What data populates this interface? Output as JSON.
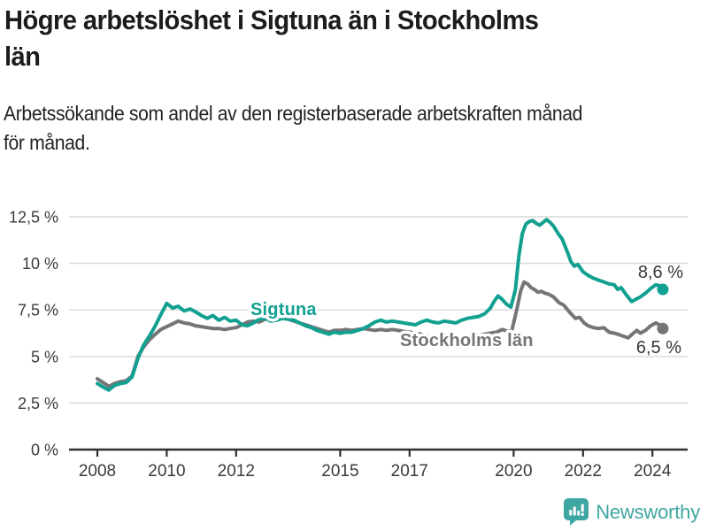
{
  "header": {
    "title_lines": [
      "Högre arbetslöshet i Sigtuna än i Stockholms",
      "län"
    ],
    "subtitle_lines": [
      "Arbetssökande som andel av den registerbaserade arbetskraften månad",
      "för månad."
    ]
  },
  "chart_data": {
    "type": "line",
    "title": "Högre arbetslöshet i Sigtuna än i Stockholms län",
    "subtitle": "Arbetssökande som andel av den registerbaserade arbetskraften månad för månad.",
    "xlabel": "",
    "ylabel": "",
    "unit": "%",
    "grid": "horizontal",
    "legend_position": "inline-labels",
    "xlim": [
      2007.3,
      2025.0
    ],
    "ylim": [
      0,
      13.5
    ],
    "x_ticks": [
      {
        "value": 2008,
        "label": "2008"
      },
      {
        "value": 2010,
        "label": "2010"
      },
      {
        "value": 2012,
        "label": "2012"
      },
      {
        "value": 2015,
        "label": "2015"
      },
      {
        "value": 2017,
        "label": "2017"
      },
      {
        "value": 2020,
        "label": "2020"
      },
      {
        "value": 2022,
        "label": "2022"
      },
      {
        "value": 2024,
        "label": "2024"
      }
    ],
    "y_ticks": [
      {
        "value": 0,
        "label": "0 %"
      },
      {
        "value": 2.5,
        "label": "2,5 %"
      },
      {
        "value": 5,
        "label": "5 %"
      },
      {
        "value": 7.5,
        "label": "7,5 %"
      },
      {
        "value": 10,
        "label": "10 %"
      },
      {
        "value": 12.5,
        "label": "12,5 %"
      }
    ],
    "colors": {
      "sigtuna": "#12a091",
      "stockholm": "#757578",
      "grid": "#d9d9d9",
      "axis": "#2f2f2f",
      "tick_text": "#3a3a3a",
      "end_label_text": "#383838"
    },
    "series": [
      {
        "name": "Sigtuna",
        "color": "#12a091",
        "end_label": "8,6 %",
        "end_value": 8.6,
        "points": [
          [
            2008.0,
            3.55
          ],
          [
            2008.17,
            3.35
          ],
          [
            2008.33,
            3.2
          ],
          [
            2008.5,
            3.45
          ],
          [
            2008.67,
            3.55
          ],
          [
            2008.83,
            3.6
          ],
          [
            2009.0,
            3.9
          ],
          [
            2009.17,
            4.9
          ],
          [
            2009.33,
            5.6
          ],
          [
            2009.5,
            6.1
          ],
          [
            2009.67,
            6.65
          ],
          [
            2009.83,
            7.25
          ],
          [
            2010.0,
            7.85
          ],
          [
            2010.17,
            7.6
          ],
          [
            2010.33,
            7.7
          ],
          [
            2010.5,
            7.45
          ],
          [
            2010.67,
            7.55
          ],
          [
            2010.83,
            7.4
          ],
          [
            2011.0,
            7.2
          ],
          [
            2011.17,
            7.05
          ],
          [
            2011.33,
            7.2
          ],
          [
            2011.5,
            6.95
          ],
          [
            2011.67,
            7.1
          ],
          [
            2011.83,
            6.9
          ],
          [
            2012.0,
            6.95
          ],
          [
            2012.17,
            6.7
          ],
          [
            2012.33,
            6.65
          ],
          [
            2012.5,
            6.8
          ],
          [
            2012.67,
            7.0
          ],
          [
            2012.83,
            7.05
          ],
          [
            2013.0,
            6.9
          ],
          [
            2013.17,
            6.95
          ],
          [
            2013.33,
            7.05
          ],
          [
            2013.5,
            7.0
          ],
          [
            2013.67,
            6.95
          ],
          [
            2013.83,
            6.8
          ],
          [
            2014.0,
            6.65
          ],
          [
            2014.17,
            6.55
          ],
          [
            2014.33,
            6.4
          ],
          [
            2014.5,
            6.3
          ],
          [
            2014.67,
            6.2
          ],
          [
            2014.83,
            6.3
          ],
          [
            2015.0,
            6.25
          ],
          [
            2015.17,
            6.3
          ],
          [
            2015.33,
            6.3
          ],
          [
            2015.5,
            6.4
          ],
          [
            2015.67,
            6.5
          ],
          [
            2015.83,
            6.65
          ],
          [
            2016.0,
            6.85
          ],
          [
            2016.17,
            6.95
          ],
          [
            2016.33,
            6.85
          ],
          [
            2016.5,
            6.9
          ],
          [
            2016.67,
            6.85
          ],
          [
            2016.83,
            6.8
          ],
          [
            2017.0,
            6.75
          ],
          [
            2017.17,
            6.7
          ],
          [
            2017.33,
            6.85
          ],
          [
            2017.5,
            6.95
          ],
          [
            2017.67,
            6.85
          ],
          [
            2017.83,
            6.8
          ],
          [
            2018.0,
            6.9
          ],
          [
            2018.17,
            6.85
          ],
          [
            2018.33,
            6.8
          ],
          [
            2018.5,
            6.95
          ],
          [
            2018.67,
            7.05
          ],
          [
            2018.83,
            7.1
          ],
          [
            2019.0,
            7.15
          ],
          [
            2019.17,
            7.3
          ],
          [
            2019.33,
            7.6
          ],
          [
            2019.45,
            8.0
          ],
          [
            2019.55,
            8.25
          ],
          [
            2019.65,
            8.1
          ],
          [
            2019.8,
            7.8
          ],
          [
            2019.92,
            7.65
          ],
          [
            2020.05,
            8.6
          ],
          [
            2020.15,
            10.4
          ],
          [
            2020.25,
            11.6
          ],
          [
            2020.35,
            12.1
          ],
          [
            2020.45,
            12.25
          ],
          [
            2020.55,
            12.3
          ],
          [
            2020.65,
            12.15
          ],
          [
            2020.75,
            12.05
          ],
          [
            2020.85,
            12.2
          ],
          [
            2020.95,
            12.35
          ],
          [
            2021.05,
            12.2
          ],
          [
            2021.15,
            12.0
          ],
          [
            2021.3,
            11.55
          ],
          [
            2021.4,
            11.3
          ],
          [
            2021.55,
            10.6
          ],
          [
            2021.65,
            10.1
          ],
          [
            2021.75,
            9.85
          ],
          [
            2021.85,
            9.95
          ],
          [
            2022.0,
            9.55
          ],
          [
            2022.15,
            9.35
          ],
          [
            2022.3,
            9.2
          ],
          [
            2022.45,
            9.1
          ],
          [
            2022.6,
            9.0
          ],
          [
            2022.75,
            8.9
          ],
          [
            2022.9,
            8.85
          ],
          [
            2023.0,
            8.6
          ],
          [
            2023.1,
            8.7
          ],
          [
            2023.25,
            8.3
          ],
          [
            2023.4,
            7.95
          ],
          [
            2023.5,
            8.05
          ],
          [
            2023.65,
            8.2
          ],
          [
            2023.8,
            8.4
          ],
          [
            2023.95,
            8.65
          ],
          [
            2024.1,
            8.85
          ],
          [
            2024.2,
            8.8
          ],
          [
            2024.3,
            8.6
          ]
        ]
      },
      {
        "name": "Stockholms län",
        "color": "#757578",
        "end_label": "6,5 %",
        "end_value": 6.5,
        "points": [
          [
            2008.0,
            3.8
          ],
          [
            2008.17,
            3.6
          ],
          [
            2008.33,
            3.4
          ],
          [
            2008.5,
            3.55
          ],
          [
            2008.67,
            3.65
          ],
          [
            2008.83,
            3.7
          ],
          [
            2009.0,
            3.95
          ],
          [
            2009.17,
            5.0
          ],
          [
            2009.33,
            5.5
          ],
          [
            2009.5,
            5.9
          ],
          [
            2009.67,
            6.2
          ],
          [
            2009.83,
            6.45
          ],
          [
            2010.0,
            6.6
          ],
          [
            2010.17,
            6.75
          ],
          [
            2010.33,
            6.9
          ],
          [
            2010.5,
            6.8
          ],
          [
            2010.67,
            6.75
          ],
          [
            2010.83,
            6.65
          ],
          [
            2011.0,
            6.6
          ],
          [
            2011.17,
            6.55
          ],
          [
            2011.33,
            6.5
          ],
          [
            2011.5,
            6.5
          ],
          [
            2011.67,
            6.45
          ],
          [
            2011.83,
            6.5
          ],
          [
            2012.0,
            6.55
          ],
          [
            2012.17,
            6.7
          ],
          [
            2012.33,
            6.85
          ],
          [
            2012.5,
            6.9
          ],
          [
            2012.67,
            6.85
          ],
          [
            2012.83,
            7.0
          ],
          [
            2013.0,
            7.05
          ],
          [
            2013.17,
            7.1
          ],
          [
            2013.33,
            7.05
          ],
          [
            2013.5,
            7.0
          ],
          [
            2013.67,
            6.9
          ],
          [
            2013.83,
            6.8
          ],
          [
            2014.0,
            6.7
          ],
          [
            2014.17,
            6.6
          ],
          [
            2014.33,
            6.5
          ],
          [
            2014.5,
            6.4
          ],
          [
            2014.67,
            6.3
          ],
          [
            2014.83,
            6.4
          ],
          [
            2015.0,
            6.4
          ],
          [
            2015.17,
            6.45
          ],
          [
            2015.33,
            6.4
          ],
          [
            2015.5,
            6.45
          ],
          [
            2015.67,
            6.5
          ],
          [
            2015.83,
            6.45
          ],
          [
            2016.0,
            6.4
          ],
          [
            2016.17,
            6.45
          ],
          [
            2016.33,
            6.4
          ],
          [
            2016.5,
            6.45
          ],
          [
            2016.67,
            6.4
          ],
          [
            2016.83,
            6.35
          ],
          [
            2017.0,
            6.3
          ],
          [
            2017.17,
            6.25
          ],
          [
            2017.33,
            6.2
          ],
          [
            2017.5,
            6.1
          ],
          [
            2017.67,
            6.05
          ],
          [
            2017.83,
            6.0
          ],
          [
            2018.0,
            6.0
          ],
          [
            2018.17,
            5.95
          ],
          [
            2018.33,
            6.0
          ],
          [
            2018.5,
            6.05
          ],
          [
            2018.67,
            6.1
          ],
          [
            2018.83,
            6.1
          ],
          [
            2019.0,
            6.15
          ],
          [
            2019.17,
            6.2
          ],
          [
            2019.33,
            6.25
          ],
          [
            2019.5,
            6.3
          ],
          [
            2019.67,
            6.45
          ],
          [
            2019.83,
            6.35
          ],
          [
            2019.95,
            6.4
          ],
          [
            2020.1,
            7.6
          ],
          [
            2020.2,
            8.5
          ],
          [
            2020.3,
            9.0
          ],
          [
            2020.4,
            8.9
          ],
          [
            2020.5,
            8.7
          ],
          [
            2020.6,
            8.6
          ],
          [
            2020.7,
            8.45
          ],
          [
            2020.8,
            8.5
          ],
          [
            2020.9,
            8.4
          ],
          [
            2021.0,
            8.35
          ],
          [
            2021.15,
            8.2
          ],
          [
            2021.3,
            7.9
          ],
          [
            2021.45,
            7.75
          ],
          [
            2021.6,
            7.4
          ],
          [
            2021.78,
            7.05
          ],
          [
            2021.9,
            7.1
          ],
          [
            2022.03,
            6.8
          ],
          [
            2022.15,
            6.65
          ],
          [
            2022.3,
            6.55
          ],
          [
            2022.45,
            6.5
          ],
          [
            2022.6,
            6.55
          ],
          [
            2022.75,
            6.3
          ],
          [
            2022.9,
            6.25
          ],
          [
            2023.0,
            6.2
          ],
          [
            2023.15,
            6.1
          ],
          [
            2023.3,
            6.0
          ],
          [
            2023.45,
            6.25
          ],
          [
            2023.55,
            6.4
          ],
          [
            2023.65,
            6.25
          ],
          [
            2023.8,
            6.4
          ],
          [
            2023.95,
            6.65
          ],
          [
            2024.1,
            6.8
          ],
          [
            2024.2,
            6.7
          ],
          [
            2024.3,
            6.5
          ]
        ]
      }
    ]
  },
  "footer": {
    "brand": "Newsworthy",
    "logo_icon": "bar-chart-speech-bubble-icon",
    "brand_color": "#3fa7a2"
  }
}
